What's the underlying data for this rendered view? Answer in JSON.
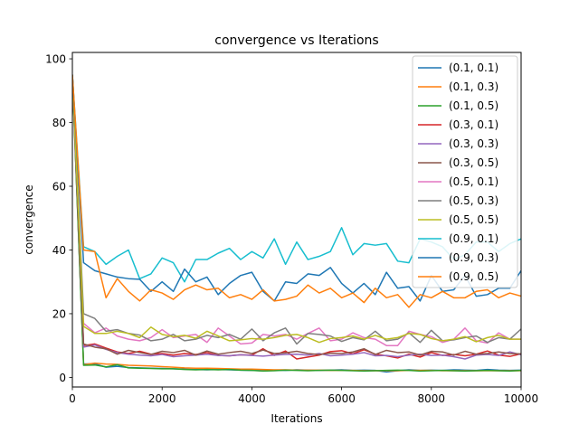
{
  "chart_data": {
    "type": "line",
    "title": "convergence vs Iterations",
    "xlabel": "Iterations",
    "ylabel": "convergence",
    "xlim": [
      0,
      10000
    ],
    "ylim": [
      -3,
      102
    ],
    "xticks": [
      0,
      2000,
      4000,
      6000,
      8000,
      10000
    ],
    "yticks": [
      0,
      20,
      40,
      60,
      80,
      100
    ],
    "grid": false,
    "legend_position": "top-right",
    "x": [
      0,
      250,
      500,
      750,
      1000,
      1250,
      1500,
      1750,
      2000,
      2250,
      2500,
      2750,
      3000,
      3250,
      3500,
      3750,
      4000,
      4250,
      4500,
      4750,
      5000,
      5250,
      5500,
      5750,
      6000,
      6250,
      6500,
      6750,
      7000,
      7250,
      7500,
      7750,
      8000,
      8250,
      8500,
      8750,
      9000,
      9250,
      9500,
      9750,
      10000
    ],
    "series": [
      {
        "name": "(0.1, 0.1)",
        "color": "#1f77b4",
        "values": [
          95,
          4.2,
          4.3,
          3.2,
          3.5,
          3.1,
          3.0,
          2.9,
          2.8,
          2.7,
          2.6,
          2.5,
          2.4,
          2.5,
          2.4,
          2.3,
          2.2,
          2.1,
          2.3,
          2.2,
          2.4,
          2.3,
          2.2,
          2.3,
          2.4,
          2.2,
          2.3,
          2.2,
          1.7,
          2.1,
          2.4,
          2.2,
          2.3,
          2.2,
          2.4,
          2.3,
          2.2,
          2.5,
          2.3,
          2.2,
          2.3
        ]
      },
      {
        "name": "(0.1, 0.3)",
        "color": "#ff7f0e",
        "values": [
          95,
          4.0,
          4.5,
          4.2,
          4.1,
          3.8,
          3.7,
          3.6,
          3.4,
          3.2,
          3.0,
          2.9,
          2.9,
          2.8,
          2.7,
          2.6,
          2.6,
          2.5,
          2.4,
          2.4,
          2.3,
          2.3,
          2.3,
          2.2,
          2.2,
          2.2,
          2.1,
          2.1,
          2.1,
          2.1,
          2.2,
          2.2,
          2.2,
          2.1,
          2.1,
          2.1,
          2.1,
          2.1,
          2.1,
          2.1,
          2.1
        ]
      },
      {
        "name": "(0.1, 0.5)",
        "color": "#2ca02c",
        "values": [
          94,
          3.8,
          3.9,
          3.3,
          4.0,
          3.0,
          2.9,
          2.8,
          2.7,
          2.7,
          2.5,
          2.4,
          2.5,
          2.4,
          2.5,
          2.3,
          2.2,
          2.0,
          2.1,
          2.3,
          2.2,
          2.1,
          2.2,
          2.3,
          2.2,
          2.1,
          2.0,
          2.1,
          2.2,
          2.3,
          2.2,
          2.0,
          2.1,
          2.2,
          2.1,
          2.0,
          2.1,
          2.2,
          2.1,
          2.0,
          2.2
        ]
      },
      {
        "name": "(0.3, 0.1)",
        "color": "#d62728",
        "values": [
          95,
          10,
          10.5,
          9.2,
          8.0,
          7.5,
          8.2,
          7.3,
          7.5,
          7.0,
          7.5,
          7.2,
          7.8,
          6.9,
          6.8,
          7.1,
          7.0,
          9.0,
          6.9,
          8.3,
          5.8,
          6.4,
          7.0,
          8.1,
          8.4,
          7.4,
          8.7,
          7.3,
          6.8,
          6.1,
          7.3,
          6.4,
          7.8,
          6.9,
          7.2,
          6.8,
          7.3,
          8.3,
          7.0,
          6.6,
          7.4
        ]
      },
      {
        "name": "(0.3, 0.3)",
        "color": "#9467bd",
        "values": [
          95,
          9.5,
          10.2,
          8.8,
          7.8,
          7.3,
          7.0,
          6.8,
          7.2,
          6.5,
          6.8,
          7.0,
          7.3,
          6.9,
          6.8,
          7.1,
          6.9,
          6.7,
          7.0,
          7.2,
          7.3,
          7.0,
          7.5,
          6.8,
          7.0,
          7.3,
          7.8,
          6.8,
          6.9,
          6.5,
          7.0,
          7.3,
          6.9,
          7.0,
          6.5,
          5.8,
          7.0,
          7.2,
          6.9,
          8.0,
          7.1
        ]
      },
      {
        "name": "(0.3, 0.5)",
        "color": "#8c564b",
        "values": [
          95,
          10.5,
          9.5,
          9.0,
          7.3,
          8.5,
          7.8,
          7.2,
          8.2,
          7.8,
          8.5,
          7.0,
          8.3,
          7.3,
          7.8,
          8.2,
          7.5,
          8.6,
          7.5,
          7.7,
          8.2,
          7.5,
          7.2,
          7.6,
          7.5,
          8.0,
          9.0,
          7.2,
          8.5,
          7.8,
          8.0,
          7.0,
          8.2,
          8.0,
          7.0,
          8.2,
          7.3,
          7.5,
          8.0,
          7.5,
          7.4
        ]
      },
      {
        "name": "(0.5, 0.1)",
        "color": "#e377c2",
        "values": [
          95,
          17,
          14.0,
          15.5,
          13.0,
          12.0,
          11.5,
          12.5,
          15.0,
          12.5,
          13.0,
          13.5,
          11.0,
          15.5,
          13.0,
          10.5,
          10.8,
          13.5,
          13.0,
          13.5,
          12.0,
          13.8,
          15.5,
          11.5,
          12.0,
          14.0,
          12.5,
          12.0,
          10.0,
          10.0,
          14.5,
          13.5,
          12.8,
          11.0,
          12.0,
          15.5,
          11.5,
          10.8,
          14.0,
          12.0,
          12.0
        ]
      },
      {
        "name": "(0.5, 0.3)",
        "color": "#7f7f7f",
        "values": [
          95,
          20,
          18.5,
          14.5,
          15.0,
          13.8,
          13.3,
          11.5,
          12.0,
          13.5,
          11.5,
          12.0,
          13.2,
          12.5,
          13.5,
          12.0,
          15.2,
          11.5,
          14.0,
          15.5,
          10.5,
          13.8,
          13.5,
          13.0,
          11.3,
          12.5,
          11.8,
          14.5,
          11.5,
          12.0,
          14.0,
          11.0,
          14.8,
          11.5,
          11.8,
          12.5,
          13.0,
          11.0,
          12.5,
          12.0,
          15.2
        ]
      },
      {
        "name": "(0.5, 0.5)",
        "color": "#bcbd22",
        "values": [
          95,
          16,
          13.8,
          13.8,
          14.5,
          13.8,
          12.5,
          15.8,
          13.5,
          12.8,
          13.2,
          12.3,
          14.5,
          13.0,
          11.5,
          11.8,
          12.2,
          12.0,
          12.5,
          13.2,
          13.5,
          12.5,
          11.0,
          12.2,
          12.5,
          13.0,
          12.0,
          13.2,
          12.0,
          12.5,
          13.8,
          13.5,
          12.2,
          11.5,
          12.0,
          12.8,
          11.2,
          12.5,
          13.2,
          12.0,
          12.0
        ]
      },
      {
        "name": "(0.9, 0.1)",
        "color": "#17becf",
        "values": [
          95,
          41,
          39.5,
          35.5,
          38.0,
          40.0,
          31.0,
          32.5,
          37.5,
          36.0,
          30.0,
          37.0,
          37.0,
          39.0,
          40.5,
          37.0,
          39.5,
          37.5,
          43.5,
          35.5,
          42.5,
          37.0,
          38.0,
          39.5,
          47.0,
          38.5,
          42.0,
          41.5,
          42.0,
          36.5,
          36.0,
          43.5,
          42.5,
          41.0,
          37.0,
          38.5,
          42.5,
          42.5,
          39.5,
          42.0,
          43.5
        ]
      },
      {
        "name": "(0.9, 0.3)",
        "color": "#1f77b4",
        "values": [
          95,
          36,
          33.5,
          32.5,
          31.5,
          31.0,
          30.8,
          27.0,
          30.0,
          27.0,
          34.0,
          30.0,
          31.5,
          26.0,
          29.5,
          32.0,
          33.0,
          27.0,
          24.0,
          30.0,
          29.5,
          32.5,
          32.0,
          34.5,
          29.5,
          26.5,
          29.5,
          26.0,
          33.0,
          28.0,
          28.5,
          24.0,
          32.0,
          27.0,
          27.5,
          32.0,
          25.5,
          26.0,
          28.0,
          28.0,
          33.5
        ]
      },
      {
        "name": "(0.9, 0.5)",
        "color": "#ff7f0e",
        "values": [
          95,
          40,
          39.5,
          25.0,
          31.0,
          27.0,
          24.0,
          27.5,
          26.5,
          24.5,
          27.5,
          29.0,
          27.5,
          28.0,
          25.0,
          26.0,
          24.5,
          27.5,
          24.0,
          24.5,
          25.5,
          29.0,
          26.5,
          28.0,
          25.0,
          26.5,
          23.5,
          28.0,
          25.0,
          26.0,
          22.0,
          26.0,
          25.0,
          27.0,
          25.0,
          25.0,
          27.0,
          27.5,
          25.0,
          26.5,
          25.5
        ]
      }
    ]
  }
}
